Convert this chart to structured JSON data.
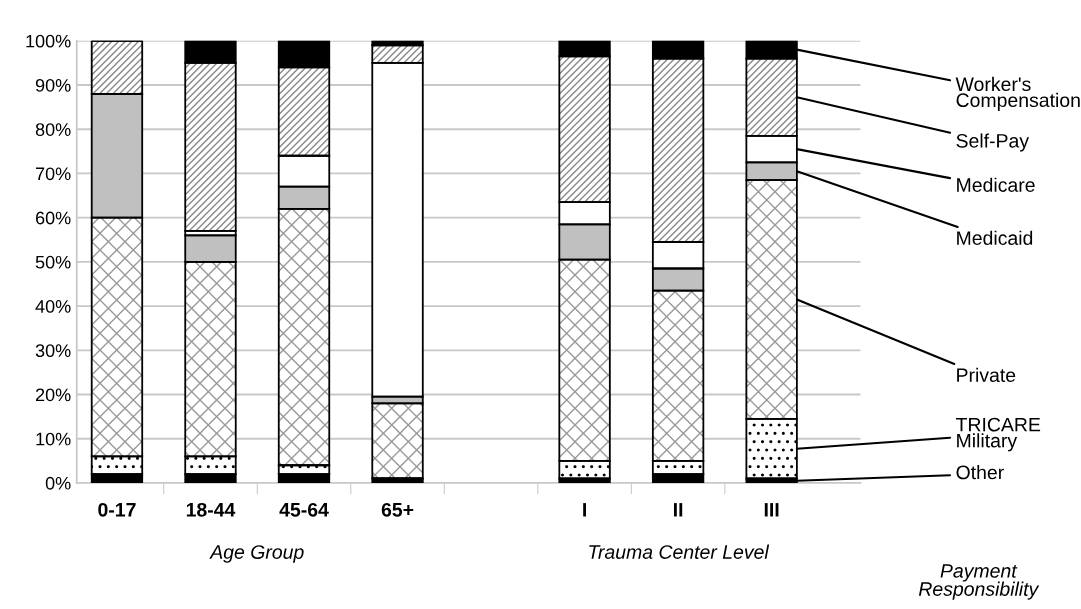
{
  "chart_data": {
    "type": "bar",
    "stacked": true,
    "categories": [
      "0-17",
      "18-44",
      "45-64",
      "65+",
      null,
      "I",
      "II",
      "III"
    ],
    "series": [
      {
        "name": "Other",
        "color": "#000000",
        "values": [
          2,
          2,
          2,
          1,
          null,
          1,
          2,
          1
        ]
      },
      {
        "name": "TRICARE\nMilitary",
        "color": "#ffffff",
        "values": [
          4,
          4,
          2,
          0,
          null,
          4,
          3,
          13.5
        ]
      },
      {
        "name": "Private",
        "color": "#ffffff",
        "values": [
          54,
          44,
          58,
          17,
          null,
          45.5,
          38.5,
          54
        ]
      },
      {
        "name": "Medicaid",
        "color": "#c0c0c0",
        "values": [
          28,
          6,
          5,
          1.5,
          null,
          8,
          5,
          4
        ]
      },
      {
        "name": "Medicare",
        "color": "#ffffff",
        "values": [
          0,
          1,
          7,
          75.5,
          null,
          5,
          6,
          6
        ]
      },
      {
        "name": "Self-Pay",
        "color": "#ffffff",
        "values": [
          12,
          38,
          20,
          4,
          null,
          33,
          41.5,
          17.5
        ]
      },
      {
        "name": "Worker's\nCompensation",
        "color": "#000000",
        "values": [
          0,
          5,
          6,
          1,
          null,
          3.5,
          4,
          4
        ]
      }
    ],
    "ylim": [
      0,
      100
    ],
    "yticks": [
      {
        "value": 0,
        "label": "0%"
      },
      {
        "value": 10,
        "label": "10%"
      },
      {
        "value": 20,
        "label": "20%"
      },
      {
        "value": 30,
        "label": "30%"
      },
      {
        "value": 40,
        "label": "40%"
      },
      {
        "value": 50,
        "label": "50%"
      },
      {
        "value": 60,
        "label": "60%"
      },
      {
        "value": 70,
        "label": "70%"
      },
      {
        "value": 80,
        "label": "80%"
      },
      {
        "value": 90,
        "label": "90%"
      },
      {
        "value": 100,
        "label": "100%"
      }
    ],
    "grid": "y",
    "legend_title": "Payment Responsibility",
    "annotations": [
      "Age Group",
      "Trauma Center Level"
    ]
  }
}
